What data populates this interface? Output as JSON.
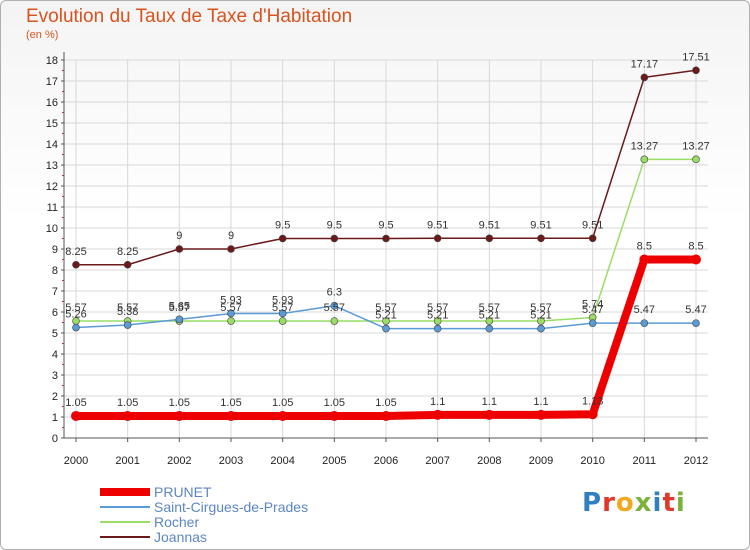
{
  "title": "Evolution du Taux de Taxe d'Habitation",
  "subtitle": "(en %)",
  "brand": {
    "text": "Proxiti",
    "letter_colors": [
      "#2f7fc1",
      "#e0382b",
      "#f2a81d",
      "#7bb33a",
      "#2f7fc1",
      "#e0382b",
      "#7bb33a"
    ]
  },
  "chart_data": {
    "type": "line",
    "title": "Evolution du Taux de Taxe d'Habitation",
    "ylabel": "(en %)",
    "xlabel": "",
    "x": [
      "2000",
      "2001",
      "2002",
      "2003",
      "2004",
      "2005",
      "2006",
      "2007",
      "2008",
      "2009",
      "2010",
      "2011",
      "2012"
    ],
    "ylim": [
      0,
      18
    ],
    "yticks": [
      0,
      1,
      2,
      3,
      4,
      5,
      6,
      7,
      8,
      9,
      10,
      11,
      12,
      13,
      14,
      15,
      16,
      17,
      18
    ],
    "grid": true,
    "legend_position": "bottom-left",
    "series": [
      {
        "name": "Joannas",
        "color": "#6b1a1a",
        "values": [
          8.25,
          8.25,
          9,
          9,
          9.5,
          9.5,
          9.5,
          9.51,
          9.51,
          9.51,
          9.51,
          17.17,
          17.51
        ],
        "labels": [
          "8.25",
          "8.25",
          "9",
          "9",
          "9.5",
          "9.5",
          "9.5",
          "9.51",
          "9.51",
          "9.51",
          "9.51",
          "17.17",
          "17.51"
        ]
      },
      {
        "name": "Rocher",
        "color": "#99dd66",
        "values": [
          5.57,
          5.57,
          5.57,
          5.57,
          5.57,
          5.57,
          5.57,
          5.57,
          5.57,
          5.57,
          5.74,
          13.27,
          13.27
        ],
        "labels": [
          "5.57",
          "5.57",
          "5.57",
          "5.57",
          "5.57",
          "5.57",
          "5.57",
          "5.57",
          "5.57",
          "5.57",
          "5.74",
          "13.27",
          "13.27"
        ]
      },
      {
        "name": "Saint-Cirgues-de-Prades",
        "color": "#5b9bd5",
        "values": [
          5.26,
          5.38,
          5.65,
          5.93,
          5.93,
          6.3,
          5.21,
          5.21,
          5.21,
          5.21,
          5.47,
          5.47,
          5.47
        ],
        "labels": [
          "5.26",
          "5.38",
          "5.65",
          "5.93",
          "5.93",
          "6.3",
          "5.21",
          "5.21",
          "5.21",
          "5.21",
          "5.47",
          "5.47",
          "5.47"
        ]
      },
      {
        "name": "PRUNET",
        "color": "#ee0000",
        "values": [
          1.05,
          1.05,
          1.05,
          1.05,
          1.05,
          1.05,
          1.05,
          1.1,
          1.1,
          1.1,
          1.13,
          8.5,
          8.5
        ],
        "labels": [
          "1.05",
          "1.05",
          "1.05",
          "1.05",
          "1.05",
          "1.05",
          "1.05",
          "1.1",
          "1.1",
          "1.1",
          "1.13",
          "8.5",
          "8.5"
        ]
      }
    ],
    "legend": [
      "PRUNET",
      "Saint-Cirgues-de-Prades",
      "Rocher",
      "Joannas"
    ]
  }
}
